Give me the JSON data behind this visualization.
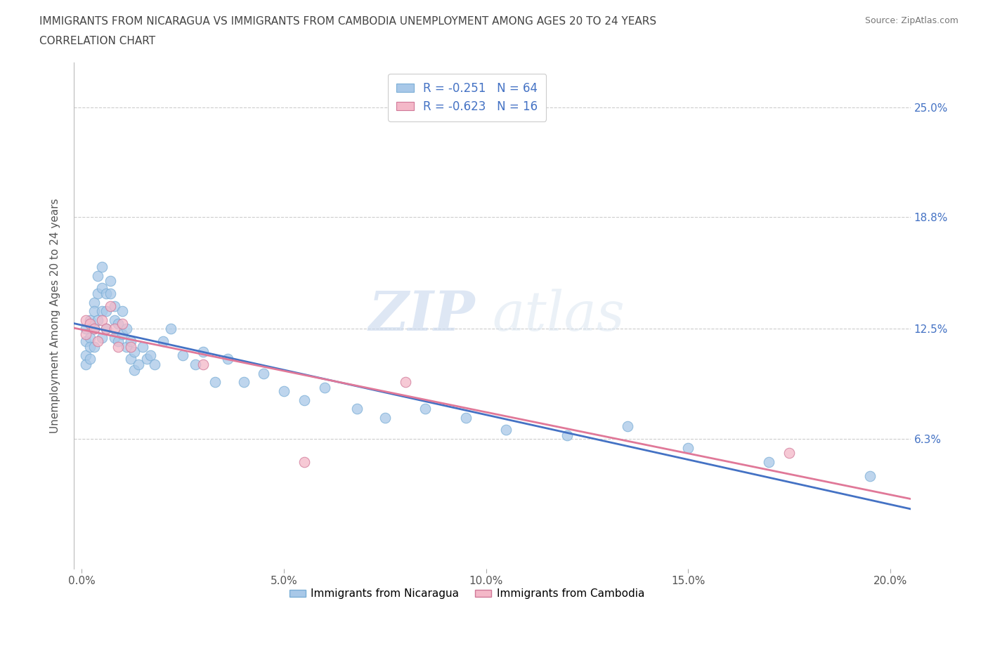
{
  "title_line1": "IMMIGRANTS FROM NICARAGUA VS IMMIGRANTS FROM CAMBODIA UNEMPLOYMENT AMONG AGES 20 TO 24 YEARS",
  "title_line2": "CORRELATION CHART",
  "source_text": "Source: ZipAtlas.com",
  "ylabel": "Unemployment Among Ages 20 to 24 years",
  "xlim": [
    -0.002,
    0.205
  ],
  "ylim": [
    -0.01,
    0.275
  ],
  "yticks": [
    0.063,
    0.125,
    0.188,
    0.25
  ],
  "ytick_labels": [
    "6.3%",
    "12.5%",
    "18.8%",
    "25.0%"
  ],
  "xticks": [
    0.0,
    0.05,
    0.1,
    0.15,
    0.2
  ],
  "xtick_labels": [
    "0.0%",
    "5.0%",
    "10.0%",
    "15.0%",
    "20.0%"
  ],
  "nicaragua_color": "#a8c8e8",
  "nicaragua_edge": "#7aaed6",
  "cambodia_color": "#f4b8c8",
  "cambodia_edge": "#d07898",
  "trend_nicaragua_color": "#4472c4",
  "trend_cambodia_color": "#e07898",
  "R_nicaragua": -0.251,
  "N_nicaragua": 64,
  "R_cambodia": -0.623,
  "N_cambodia": 16,
  "legend_label_nicaragua": "Immigrants from Nicaragua",
  "legend_label_cambodia": "Immigrants from Cambodia",
  "watermark_zip": "ZIP",
  "watermark_atlas": "atlas",
  "nicaragua_x": [
    0.001,
    0.001,
    0.001,
    0.001,
    0.002,
    0.002,
    0.002,
    0.002,
    0.003,
    0.003,
    0.003,
    0.003,
    0.004,
    0.004,
    0.004,
    0.005,
    0.005,
    0.005,
    0.005,
    0.006,
    0.006,
    0.006,
    0.007,
    0.007,
    0.008,
    0.008,
    0.008,
    0.009,
    0.009,
    0.01,
    0.01,
    0.011,
    0.011,
    0.012,
    0.012,
    0.013,
    0.013,
    0.014,
    0.015,
    0.016,
    0.017,
    0.018,
    0.02,
    0.022,
    0.025,
    0.028,
    0.03,
    0.033,
    0.036,
    0.04,
    0.045,
    0.05,
    0.055,
    0.06,
    0.068,
    0.075,
    0.085,
    0.095,
    0.105,
    0.12,
    0.135,
    0.15,
    0.17,
    0.195
  ],
  "nicaragua_y": [
    0.125,
    0.118,
    0.11,
    0.105,
    0.13,
    0.12,
    0.115,
    0.108,
    0.14,
    0.135,
    0.125,
    0.115,
    0.155,
    0.145,
    0.13,
    0.16,
    0.148,
    0.135,
    0.12,
    0.145,
    0.135,
    0.125,
    0.152,
    0.145,
    0.138,
    0.13,
    0.12,
    0.128,
    0.118,
    0.135,
    0.122,
    0.125,
    0.115,
    0.118,
    0.108,
    0.112,
    0.102,
    0.105,
    0.115,
    0.108,
    0.11,
    0.105,
    0.118,
    0.125,
    0.11,
    0.105,
    0.112,
    0.095,
    0.108,
    0.095,
    0.1,
    0.09,
    0.085,
    0.092,
    0.08,
    0.075,
    0.08,
    0.075,
    0.068,
    0.065,
    0.07,
    0.058,
    0.05,
    0.042
  ],
  "cambodia_x": [
    0.001,
    0.001,
    0.002,
    0.003,
    0.004,
    0.005,
    0.006,
    0.007,
    0.008,
    0.009,
    0.01,
    0.012,
    0.03,
    0.055,
    0.08,
    0.175
  ],
  "cambodia_y": [
    0.13,
    0.122,
    0.128,
    0.125,
    0.118,
    0.13,
    0.125,
    0.138,
    0.125,
    0.115,
    0.128,
    0.115,
    0.105,
    0.05,
    0.095,
    0.055
  ]
}
